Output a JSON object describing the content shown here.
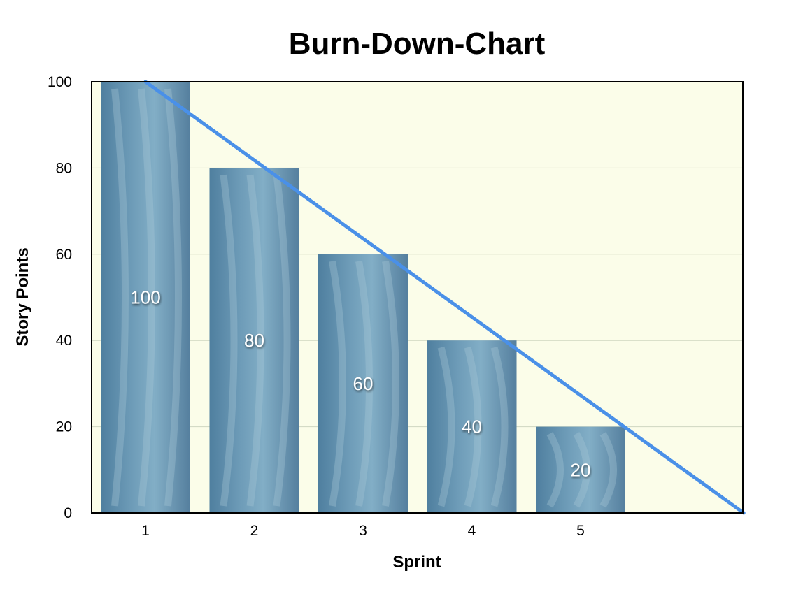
{
  "chart_data": {
    "type": "bar",
    "title": "Burn-Down-Chart",
    "xlabel": "Sprint",
    "ylabel": "Story Points",
    "categories": [
      "1",
      "2",
      "3",
      "4",
      "5"
    ],
    "values": [
      100,
      80,
      60,
      40,
      20
    ],
    "data_labels": [
      "100",
      "80",
      "60",
      "40",
      "20"
    ],
    "yticks": [
      "0",
      "20",
      "40",
      "60",
      "80",
      "100"
    ],
    "ylim": [
      0,
      100
    ],
    "trend_line": {
      "from": [
        1,
        100
      ],
      "to": [
        6.5,
        0
      ]
    },
    "grid": true,
    "legend": "none",
    "colors": {
      "plot_background": "#fbfde9",
      "bar": "#5e8fae",
      "trend_line": "#4a90e8",
      "gridline": "#cfd6c0"
    }
  }
}
